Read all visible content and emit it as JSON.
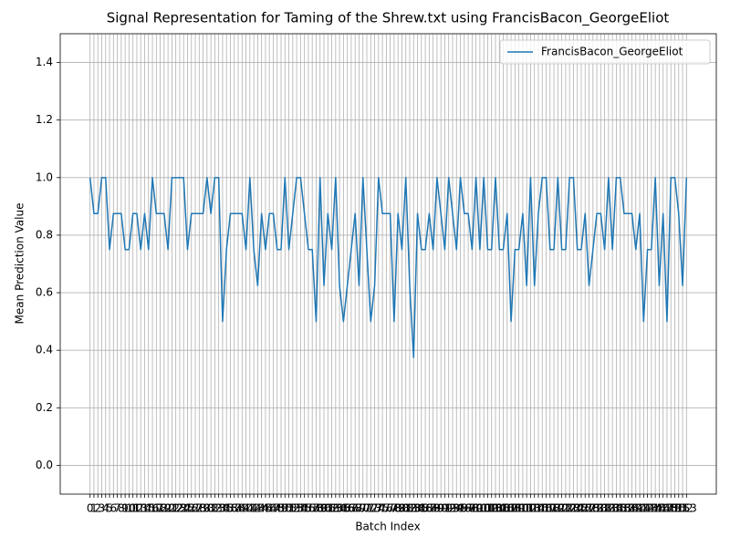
{
  "chart_data": {
    "type": "line",
    "title": "Signal Representation for Taming of the Shrew.txt using FrancisBacon_GeorgeEliot",
    "xlabel": "Batch Index",
    "ylabel": "Mean Prediction Value",
    "x": [
      0,
      1,
      2,
      3,
      4,
      5,
      6,
      7,
      8,
      9,
      10,
      11,
      12,
      13,
      14,
      15,
      16,
      17,
      18,
      19,
      20,
      21,
      22,
      23,
      24,
      25,
      26,
      27,
      28,
      29,
      30,
      31,
      32,
      33,
      34,
      35,
      36,
      37,
      38,
      39,
      40,
      41,
      42,
      43,
      44,
      45,
      46,
      47,
      48,
      49,
      50,
      51,
      52,
      53,
      54,
      55,
      56,
      57,
      58,
      59,
      60,
      61,
      62,
      63,
      64,
      65,
      66,
      67,
      68,
      69,
      70,
      71,
      72,
      73,
      74,
      75,
      76,
      77,
      78,
      79,
      80,
      81,
      82,
      83,
      84,
      85,
      86,
      87,
      88,
      89,
      90,
      91,
      92,
      93,
      94,
      95,
      96,
      97,
      98,
      99,
      100,
      101,
      102,
      103,
      104,
      105,
      106,
      107,
      108,
      109,
      110,
      111,
      112,
      113,
      114,
      115,
      116,
      117,
      118,
      119,
      120,
      121,
      122,
      123,
      124,
      125,
      126,
      127,
      128,
      129,
      130,
      131,
      132,
      133,
      134,
      135,
      136,
      137,
      138,
      139,
      140,
      141,
      142,
      143,
      144,
      145,
      146,
      147,
      148,
      149,
      150,
      151,
      152,
      153
    ],
    "series": [
      {
        "name": "FrancisBacon_GeorgeEliot",
        "color": "#1f77b4",
        "values": [
          1.0,
          0.875,
          0.875,
          1.0,
          1.0,
          0.75,
          0.875,
          0.875,
          0.875,
          0.75,
          0.75,
          0.875,
          0.875,
          0.75,
          0.875,
          0.75,
          1.0,
          0.875,
          0.875,
          0.875,
          0.75,
          1.0,
          1.0,
          1.0,
          1.0,
          0.75,
          0.875,
          0.875,
          0.875,
          0.875,
          1.0,
          0.875,
          1.0,
          1.0,
          0.5,
          0.75,
          0.875,
          0.875,
          0.875,
          0.875,
          0.75,
          1.0,
          0.75,
          0.625,
          0.875,
          0.75,
          0.875,
          0.875,
          0.75,
          0.75,
          1.0,
          0.75,
          0.875,
          1.0,
          1.0,
          0.875,
          0.75,
          0.75,
          0.5,
          1.0,
          0.625,
          0.875,
          0.75,
          1.0,
          0.625,
          0.5,
          0.625,
          0.75,
          0.875,
          0.625,
          1.0,
          0.75,
          0.5,
          0.625,
          1.0,
          0.875,
          0.875,
          0.875,
          0.5,
          0.875,
          0.75,
          1.0,
          0.625,
          0.375,
          0.875,
          0.75,
          0.75,
          0.875,
          0.75,
          1.0,
          0.875,
          0.75,
          1.0,
          0.875,
          0.75,
          1.0,
          0.875,
          0.875,
          0.75,
          1.0,
          0.75,
          1.0,
          0.75,
          0.75,
          1.0,
          0.75,
          0.75,
          0.875,
          0.5,
          0.75,
          0.75,
          0.875,
          0.625,
          1.0,
          0.625,
          0.875,
          1.0,
          1.0,
          0.75,
          0.75,
          1.0,
          0.75,
          0.75,
          1.0,
          1.0,
          0.75,
          0.75,
          0.875,
          0.625,
          0.75,
          0.875,
          0.875,
          0.75,
          1.0,
          0.75,
          1.0,
          1.0,
          0.875,
          0.875,
          0.875,
          0.75,
          0.875,
          0.5,
          0.75,
          0.75,
          1.0,
          0.625,
          0.875,
          0.5,
          1.0,
          1.0,
          0.875,
          0.625,
          1.0
        ]
      }
    ],
    "xlim": [
      -7.65,
      160.65
    ],
    "xticks": [
      0,
      1,
      2,
      3,
      4,
      5,
      6,
      7,
      8,
      9,
      10,
      11,
      12,
      13,
      14,
      15,
      16,
      17,
      18,
      19,
      20,
      21,
      22,
      23,
      24,
      25,
      26,
      27,
      28,
      29,
      30,
      31,
      32,
      33,
      34,
      35,
      36,
      37,
      38,
      39,
      40,
      41,
      42,
      43,
      44,
      45,
      46,
      47,
      48,
      49,
      50,
      51,
      52,
      53,
      54,
      55,
      56,
      57,
      58,
      59,
      60,
      61,
      62,
      63,
      64,
      65,
      66,
      67,
      68,
      69,
      70,
      71,
      72,
      73,
      74,
      75,
      76,
      77,
      78,
      79,
      80,
      81,
      82,
      83,
      84,
      85,
      86,
      87,
      88,
      89,
      90,
      91,
      92,
      93,
      94,
      95,
      96,
      97,
      98,
      99,
      100,
      101,
      102,
      103,
      104,
      105,
      106,
      107,
      108,
      109,
      110,
      111,
      112,
      113,
      114,
      115,
      116,
      117,
      118,
      119,
      120,
      121,
      122,
      123,
      124,
      125,
      126,
      127,
      128,
      129,
      130,
      131,
      132,
      133,
      134,
      135,
      136,
      137,
      138,
      139,
      140,
      141,
      142,
      143,
      144,
      145,
      146,
      147,
      148,
      149,
      150,
      151,
      152,
      153
    ],
    "ylim": [
      -0.1,
      1.5
    ],
    "yticks": [
      {
        "value": 0,
        "label": "0.0"
      },
      {
        "value": 0.2,
        "label": "0.2"
      },
      {
        "value": 0.4,
        "label": "0.4"
      },
      {
        "value": 0.6,
        "label": "0.6"
      },
      {
        "value": 0.8,
        "label": "0.8"
      },
      {
        "value": 1,
        "label": "1.0"
      },
      {
        "value": 1.2,
        "label": "1.2"
      },
      {
        "value": 1.4,
        "label": "1.4"
      }
    ],
    "grid": true,
    "legend": "upper right"
  }
}
